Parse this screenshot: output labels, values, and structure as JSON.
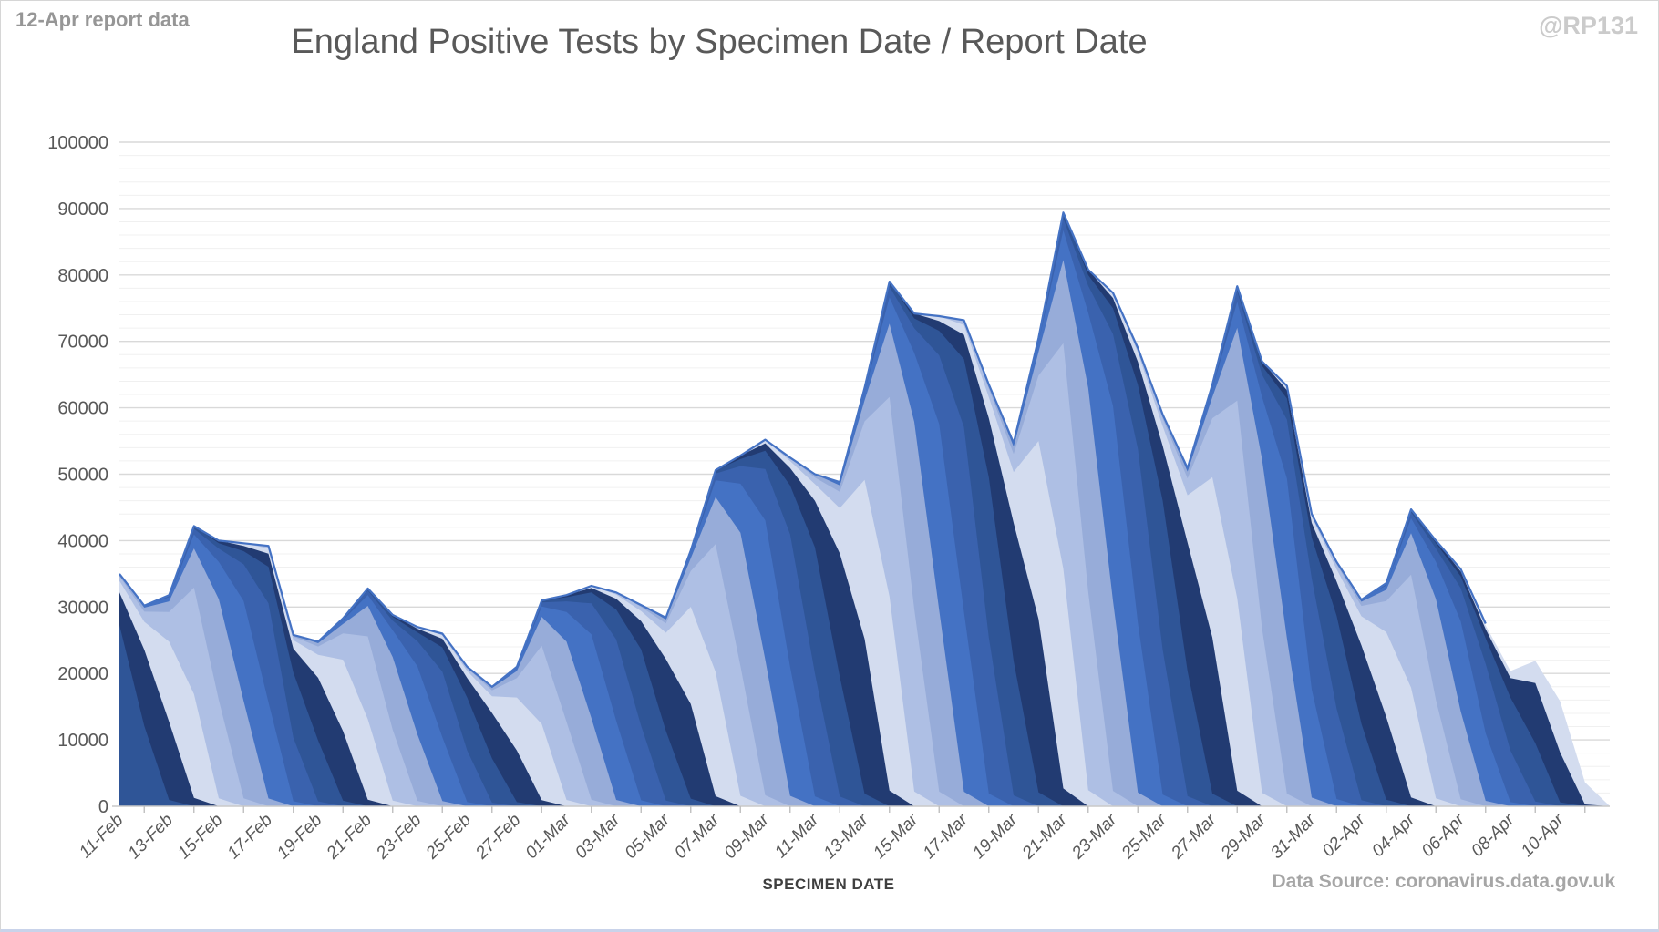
{
  "header": {
    "report_note": "12-Apr report data",
    "title": "England Positive Tests by Specimen Date / Report Date",
    "handle": "@RP131"
  },
  "footer": {
    "x_axis_title": "SPECIMEN DATE",
    "source": "Data Source: coronavirus.data.gov.uk"
  },
  "chart_data": {
    "type": "area",
    "title": "England Positive Tests by Specimen Date / Report Date",
    "xlabel": "SPECIMEN DATE",
    "ylabel": "",
    "ylim": [
      0,
      100000
    ],
    "y_major_step": 10000,
    "y_minor_step": 2000,
    "y_tick_labels": [
      "0",
      "10000",
      "20000",
      "30000",
      "40000",
      "50000",
      "60000",
      "70000",
      "80000",
      "90000",
      "100000"
    ],
    "x_tick_labels": [
      "11-Feb",
      "13-Feb",
      "15-Feb",
      "17-Feb",
      "19-Feb",
      "21-Feb",
      "23-Feb",
      "25-Feb",
      "27-Feb",
      "01-Mar",
      "03-Mar",
      "05-Mar",
      "07-Mar",
      "09-Mar",
      "11-Mar",
      "13-Mar",
      "15-Mar",
      "17-Mar",
      "19-Mar",
      "21-Mar",
      "23-Mar",
      "25-Mar",
      "27-Mar",
      "29-Mar",
      "31-Mar",
      "02-Apr",
      "04-Apr",
      "06-Apr",
      "08-Apr",
      "10-Apr"
    ],
    "x_tick_label_every_days": 2,
    "specimen_dates": [
      "11-Feb",
      "12-Feb",
      "13-Feb",
      "14-Feb",
      "15-Feb",
      "16-Feb",
      "17-Feb",
      "18-Feb",
      "19-Feb",
      "20-Feb",
      "21-Feb",
      "22-Feb",
      "23-Feb",
      "24-Feb",
      "25-Feb",
      "26-Feb",
      "27-Feb",
      "28-Feb",
      "01-Mar",
      "02-Mar",
      "03-Mar",
      "04-Mar",
      "05-Mar",
      "06-Mar",
      "07-Mar",
      "08-Mar",
      "09-Mar",
      "10-Mar",
      "11-Mar",
      "12-Mar",
      "13-Mar",
      "14-Mar",
      "15-Mar",
      "16-Mar",
      "17-Mar",
      "18-Mar",
      "19-Mar",
      "20-Mar",
      "21-Mar",
      "22-Mar",
      "23-Mar",
      "24-Mar",
      "25-Mar",
      "26-Mar",
      "27-Mar",
      "28-Mar",
      "29-Mar",
      "30-Mar",
      "31-Mar",
      "01-Apr",
      "02-Apr",
      "03-Apr",
      "04-Apr",
      "05-Apr",
      "06-Apr",
      "07-Apr",
      "08-Apr",
      "09-Apr",
      "10-Apr",
      "11-Apr",
      "12-Apr"
    ],
    "envelope_note": "Top outline = positive tests by specimen date as known in the 12-Apr report (values estimated from gridlines)",
    "envelope": [
      35000,
      30200,
      31800,
      42200,
      40000,
      39600,
      39200,
      25800,
      24800,
      28300,
      32800,
      28800,
      27000,
      26000,
      21000,
      18000,
      21000,
      31000,
      31800,
      33200,
      32200,
      30300,
      28400,
      38500,
      50600,
      52800,
      55200,
      52500,
      50000,
      48800,
      63000,
      79000,
      74200,
      73800,
      73200,
      63500,
      54700,
      70500,
      89400,
      80800,
      77300,
      69000,
      59000,
      50900,
      63500,
      78300,
      67000,
      63300,
      44000,
      36800,
      31100,
      33600,
      44700,
      40000,
      35700,
      27500,
      21000,
      23800,
      20300,
      9000,
      1500
    ],
    "report_series": {
      "first_report_day_index": 2,
      "last_report_day_index": 60,
      "completeness_by_lag": [
        0.03,
        0.4,
        0.78,
        0.92,
        0.97,
        0.99,
        1.0
      ],
      "note": "one overlapping area per daily report date; each shows envelope scaled by reporting completeness for specimen days up to that report date; drawn newest-behind, oldest-in-front, producing diagonal stripes"
    },
    "palette_cycle": [
      "#D3DCEF",
      "#AEBFE4",
      "#97ACD9",
      "#4472C4",
      "#3A62AE",
      "#2F5597",
      "#223B72"
    ],
    "palette_phase_offset": 3,
    "envelope_line_color": "#4472C4",
    "envelope_line_end_day": 55,
    "grid": {
      "major_color": "#D9D9D9",
      "minor_color": "#F0F0F0",
      "axis_line_color": "#C9C9C9",
      "tick_color": "#BFBFBF",
      "label_color": "#595959"
    },
    "legend": "none"
  }
}
